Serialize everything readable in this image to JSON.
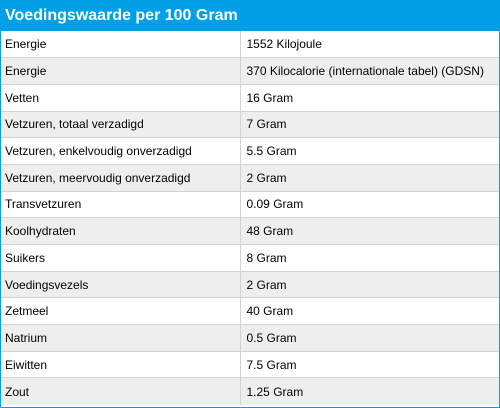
{
  "header": {
    "title": "Voedingswaarde per 100 Gram"
  },
  "colors": {
    "accent": "#00a0e6",
    "row_alt": "#eeeeee",
    "grid": "#cfd3d6"
  },
  "rows": [
    {
      "label": "Energie",
      "value": "1552 Kilojoule"
    },
    {
      "label": "Energie",
      "value": "370 Kilocalorie (internationale tabel) (GDSN)"
    },
    {
      "label": "Vetten",
      "value": "16 Gram"
    },
    {
      "label": "Vetzuren, totaal verzadigd",
      "value": "7 Gram"
    },
    {
      "label": "Vetzuren, enkelvoudig onverzadigd",
      "value": "5.5 Gram"
    },
    {
      "label": "Vetzuren, meervoudig onverzadigd",
      "value": "2 Gram"
    },
    {
      "label": "Transvetzuren",
      "value": "0.09 Gram"
    },
    {
      "label": "Koolhydraten",
      "value": "48 Gram"
    },
    {
      "label": "Suikers",
      "value": "8 Gram"
    },
    {
      "label": "Voedingsvezels",
      "value": "2 Gram"
    },
    {
      "label": "Zetmeel",
      "value": "40 Gram"
    },
    {
      "label": "Natrium",
      "value": "0.5 Gram"
    },
    {
      "label": "Eiwitten",
      "value": "7.5 Gram"
    },
    {
      "label": "Zout",
      "value": "1.25 Gram"
    }
  ]
}
